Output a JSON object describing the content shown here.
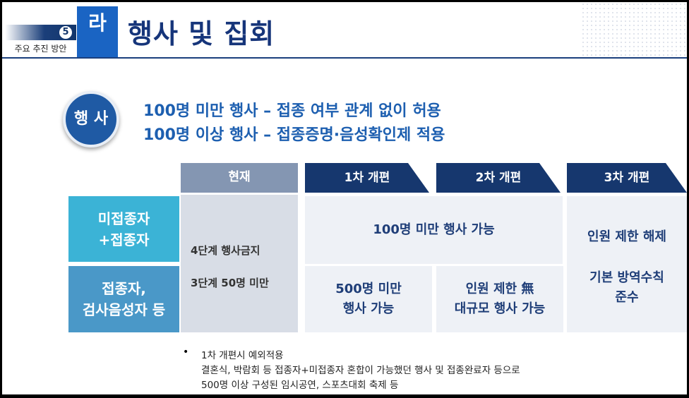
{
  "header": {
    "section_number": "5",
    "section_label": "주요 추진 방안",
    "letter": "라",
    "title": "행사 및 집회"
  },
  "event": {
    "badge": "행 사",
    "lines": [
      "100명 미만 행사 – 접종 여부 관계 없이 허용",
      "100명 이상 행사 – 접종증명·음성확인제 적용"
    ]
  },
  "table": {
    "headers": [
      "현재",
      "1차 개편",
      "2차 개편",
      "3차 개편"
    ],
    "rows": [
      "미접종자\n+접종자",
      "접종자,\n검사음성자 등"
    ],
    "current": [
      "4단계  행사금지",
      "3단계  50명 미만"
    ],
    "row1_phase12": "100명 미만 행사 가능",
    "row2_phase1": "500명 미만\n행사 가능",
    "row2_phase2": "인원 제한 無\n대규모 행사 가능",
    "phase3": [
      "인원 제한 해제",
      "기본 방역수칙\n준수"
    ]
  },
  "notes": {
    "bullet": "•",
    "lines": [
      "1차 개편시 예외적용",
      "결혼식, 박람회 등 접종자+미접종자 혼합이 가능했던 행사 및 접종완료자 등으로",
      "500명 이상 구성된 임시공연, 스포츠대회 축제 등"
    ]
  },
  "colors": {
    "navy": "#16376e",
    "title_blue": "#16357a",
    "accent_blue": "#1a64c3",
    "row1_teal": "#3bb3d6",
    "row2_blue": "#4a98c8",
    "current_gray": "#8496b2"
  }
}
